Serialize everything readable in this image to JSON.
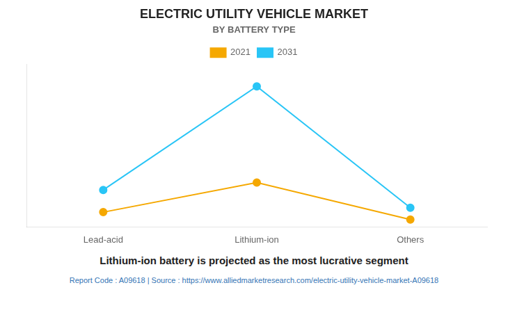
{
  "chart_data": {
    "type": "line",
    "title": "ELECTRIC UTILITY VEHICLE MARKET",
    "subtitle": "BY BATTERY TYPE",
    "annotations": [
      "Lithium-ion battery is projected as the most lucrative segment",
      "Report Code : A09618  |  Source : https://www.alliedmarketresearch.com/electric-utility-vehicle-market-A09618"
    ],
    "categories": [
      "Lead-acid",
      "Lithium-ion",
      "Others"
    ],
    "series": [
      {
        "name": "2021",
        "color": "#F5A800",
        "values": [
          1,
          3,
          0.5
        ],
        "marker": "circle"
      },
      {
        "name": "2031",
        "color": "#29C5F6",
        "values": [
          2.5,
          9.5,
          1.3
        ],
        "marker": "circle"
      }
    ],
    "ylim": [
      0,
      11
    ],
    "legend": "top",
    "grid": false,
    "tick_labels": "x"
  }
}
